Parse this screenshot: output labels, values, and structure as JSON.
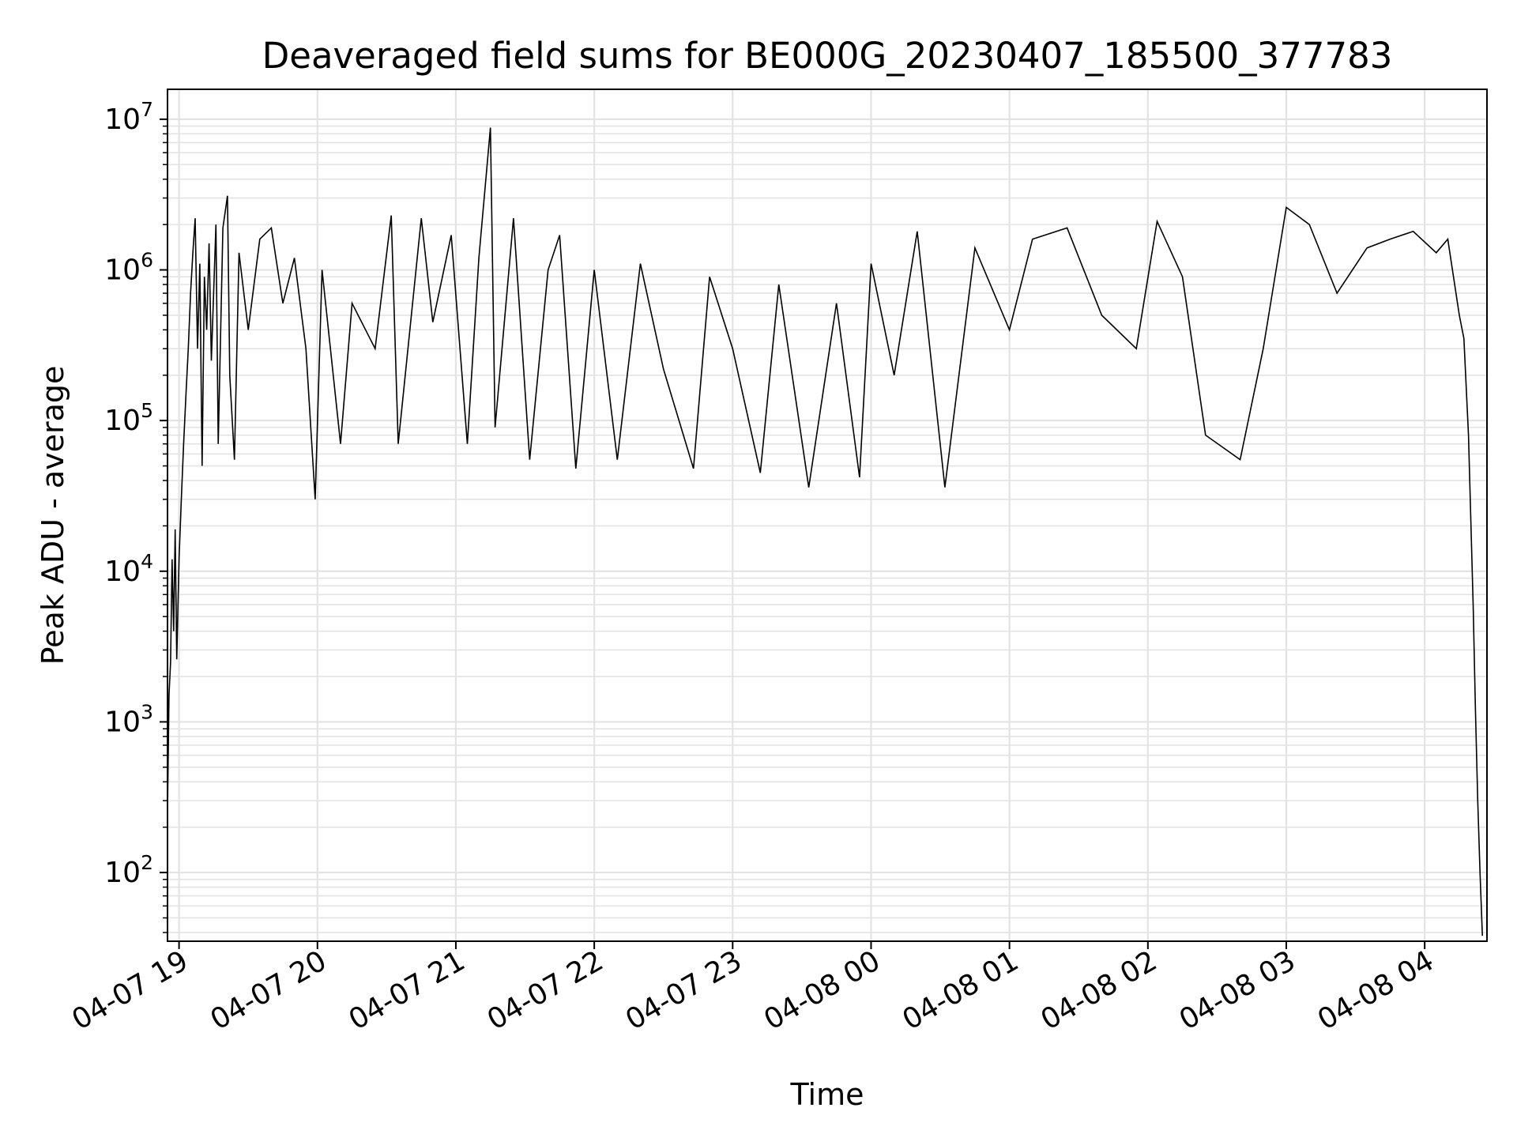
{
  "chart_data": {
    "type": "line",
    "title": "Deaveraged field sums for BE000G_20230407_185500_377783",
    "xlabel": "Time",
    "ylabel": "Peak ADU - average",
    "y_scale": "log",
    "ylim": [
      35,
      15800000
    ],
    "xlim": [
      "2023-04-07 18:55:00",
      "2023-04-08 04:27:00"
    ],
    "grid": true,
    "line_color": "#000000",
    "grid_color": "#e3e3e3",
    "x_ticks": [
      {
        "t": "2023-04-07 19:00",
        "label": "04-07 19"
      },
      {
        "t": "2023-04-07 20:00",
        "label": "04-07 20"
      },
      {
        "t": "2023-04-07 21:00",
        "label": "04-07 21"
      },
      {
        "t": "2023-04-07 22:00",
        "label": "04-07 22"
      },
      {
        "t": "2023-04-07 23:00",
        "label": "04-07 23"
      },
      {
        "t": "2023-04-08 00:00",
        "label": "04-08 00"
      },
      {
        "t": "2023-04-08 01:00",
        "label": "04-08 01"
      },
      {
        "t": "2023-04-08 02:00",
        "label": "04-08 02"
      },
      {
        "t": "2023-04-08 03:00",
        "label": "04-08 03"
      },
      {
        "t": "2023-04-08 04:00",
        "label": "04-08 04"
      }
    ],
    "y_ticks": [
      {
        "value": 100,
        "base": "10",
        "exp": "2"
      },
      {
        "value": 1000,
        "base": "10",
        "exp": "3"
      },
      {
        "value": 10000,
        "base": "10",
        "exp": "4"
      },
      {
        "value": 100000,
        "base": "10",
        "exp": "5"
      },
      {
        "value": 1000000,
        "base": "10",
        "exp": "6"
      },
      {
        "value": 10000000,
        "base": "10",
        "exp": "7"
      }
    ],
    "series": [
      {
        "points": [
          [
            "2023-04-07 18:55:00",
            250
          ],
          [
            "2023-04-07 18:55:40",
            1500
          ],
          [
            "2023-04-07 18:56:20",
            2500
          ],
          [
            "2023-04-07 18:57:00",
            12000
          ],
          [
            "2023-04-07 18:57:40",
            4000
          ],
          [
            "2023-04-07 18:58:20",
            19000
          ],
          [
            "2023-04-07 18:59:00",
            2600
          ],
          [
            "2023-04-07 19:00:00",
            12000
          ],
          [
            "2023-04-07 19:01:00",
            30000
          ],
          [
            "2023-04-07 19:02:00",
            70000
          ],
          [
            "2023-04-07 19:03:00",
            150000
          ],
          [
            "2023-04-07 19:04:00",
            300000
          ],
          [
            "2023-04-07 19:05:00",
            700000
          ],
          [
            "2023-04-07 19:06:00",
            1300000
          ],
          [
            "2023-04-07 19:07:00",
            2200000
          ],
          [
            "2023-04-07 19:08:00",
            300000
          ],
          [
            "2023-04-07 19:09:00",
            1100000
          ],
          [
            "2023-04-07 19:10:00",
            50000
          ],
          [
            "2023-04-07 19:11:00",
            900000
          ],
          [
            "2023-04-07 19:12:00",
            400000
          ],
          [
            "2023-04-07 19:13:00",
            1500000
          ],
          [
            "2023-04-07 19:14:00",
            250000
          ],
          [
            "2023-04-07 19:16:00",
            2000000
          ],
          [
            "2023-04-07 19:17:00",
            70000
          ],
          [
            "2023-04-07 19:19:00",
            1900000
          ],
          [
            "2023-04-07 19:21:00",
            3100000
          ],
          [
            "2023-04-07 19:22:00",
            200000
          ],
          [
            "2023-04-07 19:24:00",
            55000
          ],
          [
            "2023-04-07 19:26:00",
            1300000
          ],
          [
            "2023-04-07 19:30:00",
            400000
          ],
          [
            "2023-04-07 19:35:00",
            1600000
          ],
          [
            "2023-04-07 19:40:00",
            1900000
          ],
          [
            "2023-04-07 19:45:00",
            600000
          ],
          [
            "2023-04-07 19:50:00",
            1200000
          ],
          [
            "2023-04-07 19:55:00",
            300000
          ],
          [
            "2023-04-07 19:59:00",
            30000
          ],
          [
            "2023-04-07 20:02:00",
            1000000
          ],
          [
            "2023-04-07 20:10:00",
            70000
          ],
          [
            "2023-04-07 20:15:00",
            600000
          ],
          [
            "2023-04-07 20:25:00",
            300000
          ],
          [
            "2023-04-07 20:32:00",
            2300000
          ],
          [
            "2023-04-07 20:35:00",
            70000
          ],
          [
            "2023-04-07 20:45:00",
            2200000
          ],
          [
            "2023-04-07 20:50:00",
            450000
          ],
          [
            "2023-04-07 20:58:00",
            1700000
          ],
          [
            "2023-04-07 21:05:00",
            70000
          ],
          [
            "2023-04-07 21:10:00",
            1200000
          ],
          [
            "2023-04-07 21:15:00",
            8800000
          ],
          [
            "2023-04-07 21:17:00",
            90000
          ],
          [
            "2023-04-07 21:25:00",
            2200000
          ],
          [
            "2023-04-07 21:32:00",
            55000
          ],
          [
            "2023-04-07 21:40:00",
            1000000
          ],
          [
            "2023-04-07 21:45:00",
            1700000
          ],
          [
            "2023-04-07 21:52:00",
            48000
          ],
          [
            "2023-04-07 22:00:00",
            1000000
          ],
          [
            "2023-04-07 22:10:00",
            55000
          ],
          [
            "2023-04-07 22:20:00",
            1100000
          ],
          [
            "2023-04-07 22:30:00",
            220000
          ],
          [
            "2023-04-07 22:43:00",
            48000
          ],
          [
            "2023-04-07 22:50:00",
            900000
          ],
          [
            "2023-04-07 23:00:00",
            300000
          ],
          [
            "2023-04-07 23:12:00",
            45000
          ],
          [
            "2023-04-07 23:20:00",
            800000
          ],
          [
            "2023-04-07 23:33:00",
            36000
          ],
          [
            "2023-04-07 23:45:00",
            600000
          ],
          [
            "2023-04-07 23:55:00",
            42000
          ],
          [
            "2023-04-08 00:00:00",
            1100000
          ],
          [
            "2023-04-08 00:10:00",
            200000
          ],
          [
            "2023-04-08 00:20:00",
            1800000
          ],
          [
            "2023-04-08 00:32:00",
            36000
          ],
          [
            "2023-04-08 00:45:00",
            1400000
          ],
          [
            "2023-04-08 01:00:00",
            400000
          ],
          [
            "2023-04-08 01:10:00",
            1600000
          ],
          [
            "2023-04-08 01:25:00",
            1900000
          ],
          [
            "2023-04-08 01:40:00",
            500000
          ],
          [
            "2023-04-08 01:55:00",
            300000
          ],
          [
            "2023-04-08 02:04:00",
            2100000
          ],
          [
            "2023-04-08 02:15:00",
            900000
          ],
          [
            "2023-04-08 02:25:00",
            80000
          ],
          [
            "2023-04-08 02:40:00",
            55000
          ],
          [
            "2023-04-08 02:50:00",
            300000
          ],
          [
            "2023-04-08 03:00:00",
            2600000
          ],
          [
            "2023-04-08 03:10:00",
            2000000
          ],
          [
            "2023-04-08 03:22:00",
            700000
          ],
          [
            "2023-04-08 03:35:00",
            1400000
          ],
          [
            "2023-04-08 03:45:00",
            1600000
          ],
          [
            "2023-04-08 03:55:00",
            1800000
          ],
          [
            "2023-04-08 04:05:00",
            1300000
          ],
          [
            "2023-04-08 04:10:00",
            1600000
          ],
          [
            "2023-04-08 04:15:00",
            500000
          ],
          [
            "2023-04-08 04:17:00",
            350000
          ],
          [
            "2023-04-08 04:19:00",
            80000
          ],
          [
            "2023-04-08 04:21:00",
            6000
          ],
          [
            "2023-04-08 04:22:00",
            1200
          ],
          [
            "2023-04-08 04:23:00",
            300
          ],
          [
            "2023-04-08 04:24:00",
            100
          ],
          [
            "2023-04-08 04:25:00",
            38
          ]
        ]
      }
    ]
  }
}
